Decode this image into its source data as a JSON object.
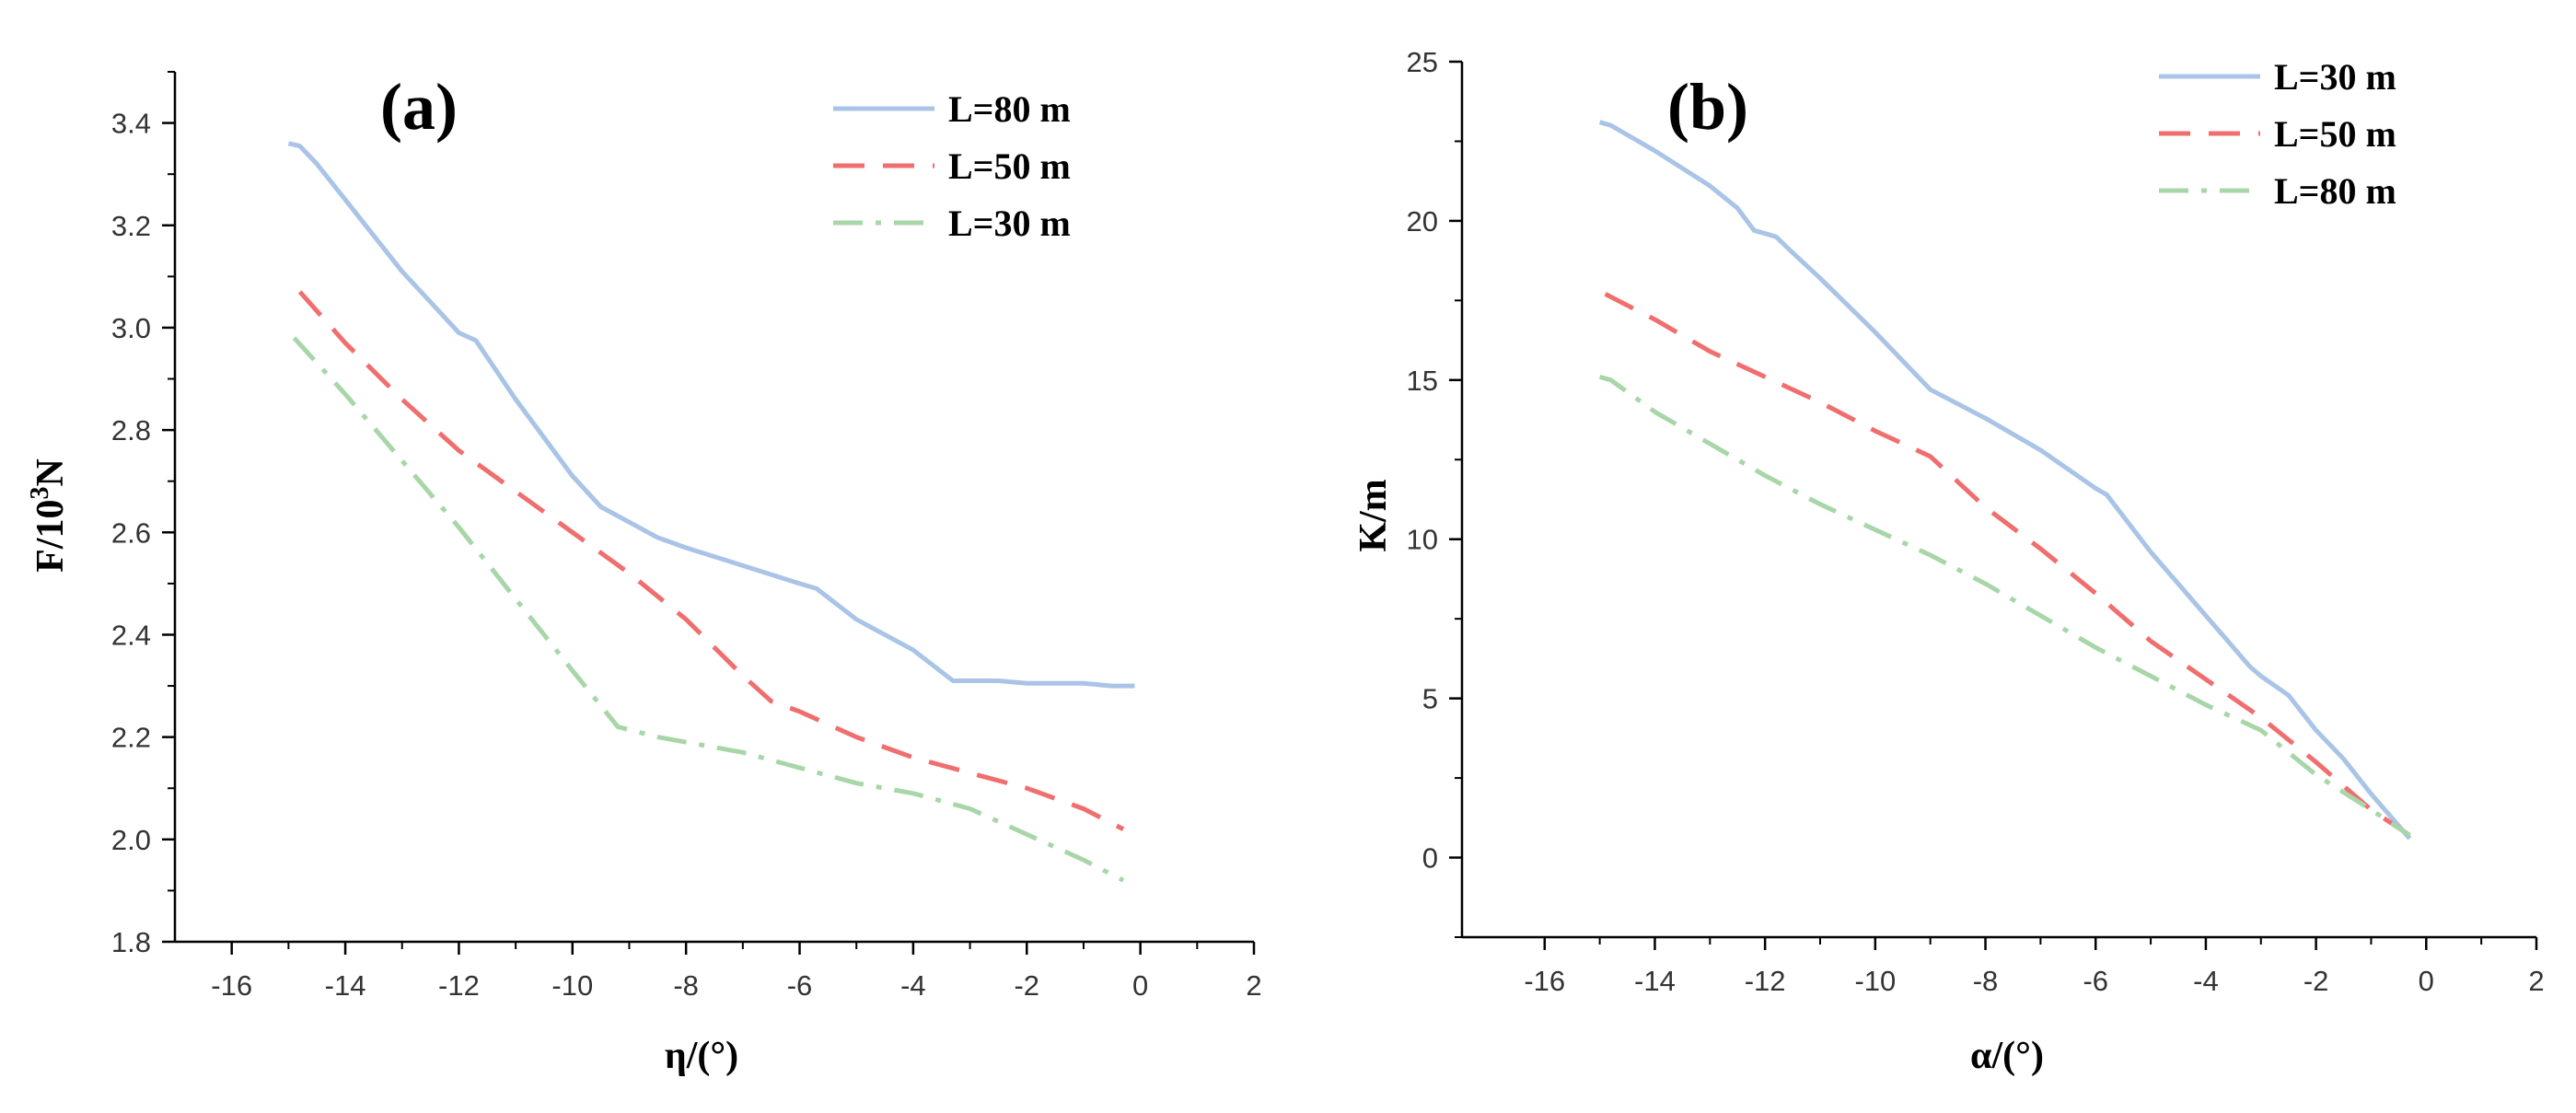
{
  "colors": {
    "blue": "#a9c4e6",
    "red": "#f06e6e",
    "green": "#a8d6a8",
    "axis": "#000000"
  },
  "chart_data": [
    {
      "type": "line",
      "panel_label": "(a)",
      "xlabel": "η/(°)",
      "ylabel_main": "F/10",
      "ylabel_sup": "3",
      "ylabel_tail": "N",
      "xlim": [
        -17,
        2
      ],
      "ylim": [
        1.8,
        3.5
      ],
      "xticks": [
        -16,
        -14,
        -12,
        -10,
        -8,
        -6,
        -4,
        -2,
        0,
        2
      ],
      "xtick_labels": [
        "-16",
        "-14",
        "-12",
        "-10",
        "-8",
        "-6",
        "-4",
        "-2",
        "0",
        "2"
      ],
      "yticks": [
        1.8,
        2.0,
        2.2,
        2.4,
        2.6,
        2.8,
        3.0,
        3.2,
        3.4
      ],
      "ytick_labels": [
        "1.8",
        "2.0",
        "2.2",
        "2.4",
        "2.6",
        "2.8",
        "3.0",
        "3.2",
        "3.4"
      ],
      "legend_position": "top-right",
      "series": [
        {
          "name": "L=80 m",
          "color": "#a9c4e6",
          "dash": "solid",
          "x": [
            -15.0,
            -14.8,
            -14.5,
            -14.0,
            -13.5,
            -13.0,
            -12.5,
            -12.0,
            -11.7,
            -11.0,
            -10.0,
            -9.5,
            -9.0,
            -8.5,
            -8.0,
            -7.0,
            -6.0,
            -5.7,
            -5.0,
            -4.0,
            -3.3,
            -3.0,
            -2.5,
            -2.0,
            -1.0,
            -0.5,
            -0.1
          ],
          "y": [
            3.36,
            3.355,
            3.32,
            3.25,
            3.18,
            3.11,
            3.05,
            2.99,
            2.975,
            2.86,
            2.71,
            2.65,
            2.62,
            2.59,
            2.57,
            2.535,
            2.5,
            2.49,
            2.43,
            2.37,
            2.31,
            2.31,
            2.31,
            2.305,
            2.305,
            2.3,
            2.3
          ]
        },
        {
          "name": "L=50 m",
          "color": "#f06e6e",
          "dash": "dashed",
          "x": [
            -14.8,
            -14.0,
            -13.0,
            -12.0,
            -11.0,
            -10.0,
            -9.0,
            -8.0,
            -7.0,
            -6.5,
            -6.0,
            -5.0,
            -4.0,
            -3.0,
            -2.0,
            -1.0,
            -0.3
          ],
          "y": [
            3.07,
            2.97,
            2.86,
            2.76,
            2.68,
            2.6,
            2.52,
            2.43,
            2.32,
            2.27,
            2.25,
            2.2,
            2.16,
            2.13,
            2.1,
            2.06,
            2.02
          ]
        },
        {
          "name": "L=30 m",
          "color": "#a8d6a8",
          "dash": "dashdot",
          "x": [
            -14.9,
            -14.0,
            -13.0,
            -12.0,
            -11.0,
            -10.0,
            -9.2,
            -8.5,
            -7.0,
            -6.0,
            -5.0,
            -4.0,
            -3.0,
            -2.0,
            -1.0,
            -0.3
          ],
          "y": [
            2.98,
            2.87,
            2.74,
            2.61,
            2.47,
            2.33,
            2.22,
            2.2,
            2.17,
            2.14,
            2.11,
            2.09,
            2.06,
            2.01,
            1.96,
            1.92
          ]
        }
      ]
    },
    {
      "type": "line",
      "panel_label": "(b)",
      "xlabel": "α/(°)",
      "ylabel_main": "K/m",
      "ylabel_sup": "",
      "ylabel_tail": "",
      "xlim": [
        -17.5,
        2
      ],
      "ylim": [
        -2.5,
        25
      ],
      "xticks": [
        -16,
        -14,
        -12,
        -10,
        -8,
        -6,
        -4,
        -2,
        0,
        2
      ],
      "xtick_labels": [
        "-16",
        "-14",
        "-12",
        "-10",
        "-8",
        "-6",
        "-4",
        "-2",
        "0",
        "2"
      ],
      "yticks": [
        0,
        5,
        10,
        15,
        20,
        25
      ],
      "ytick_labels": [
        "0",
        "5",
        "10",
        "15",
        "20",
        "25"
      ],
      "legend_position": "top-right",
      "series": [
        {
          "name": "L=30 m",
          "color": "#a9c4e6",
          "dash": "solid",
          "x": [
            -15.0,
            -14.8,
            -14.5,
            -14.0,
            -13.0,
            -12.5,
            -12.2,
            -12.0,
            -11.8,
            -11.5,
            -11.0,
            -10.0,
            -9.0,
            -8.0,
            -7.0,
            -6.0,
            -5.8,
            -5.0,
            -4.0,
            -3.2,
            -3.0,
            -2.5,
            -2.0,
            -1.5,
            -1.0,
            -0.5,
            -0.3
          ],
          "y": [
            23.1,
            23.0,
            22.7,
            22.2,
            21.1,
            20.4,
            19.7,
            19.6,
            19.5,
            19.0,
            18.2,
            16.5,
            14.7,
            13.8,
            12.8,
            11.6,
            11.4,
            9.6,
            7.6,
            6.0,
            5.7,
            5.1,
            4.0,
            3.1,
            2.0,
            1.0,
            0.6
          ]
        },
        {
          "name": "L=50 m",
          "color": "#f06e6e",
          "dash": "dashed",
          "x": [
            -14.9,
            -14.0,
            -13.0,
            -12.0,
            -11.0,
            -10.0,
            -9.0,
            -8.0,
            -7.0,
            -6.0,
            -5.0,
            -4.0,
            -3.0,
            -2.0,
            -1.0,
            -0.3
          ],
          "y": [
            17.7,
            16.9,
            15.9,
            15.1,
            14.3,
            13.4,
            12.6,
            11.0,
            9.7,
            8.3,
            6.8,
            5.6,
            4.4,
            3.0,
            1.5,
            0.7
          ]
        },
        {
          "name": "L=80 m",
          "color": "#a8d6a8",
          "dash": "dashdot",
          "x": [
            -15.0,
            -14.8,
            -14.0,
            -13.0,
            -12.0,
            -11.0,
            -10.0,
            -9.0,
            -8.0,
            -7.0,
            -6.0,
            -5.0,
            -4.0,
            -3.0,
            -2.0,
            -1.0,
            -0.3
          ],
          "y": [
            15.1,
            15.0,
            14.0,
            13.0,
            12.0,
            11.1,
            10.3,
            9.5,
            8.6,
            7.6,
            6.6,
            5.7,
            4.8,
            4.0,
            2.6,
            1.5,
            0.7
          ]
        }
      ]
    }
  ]
}
